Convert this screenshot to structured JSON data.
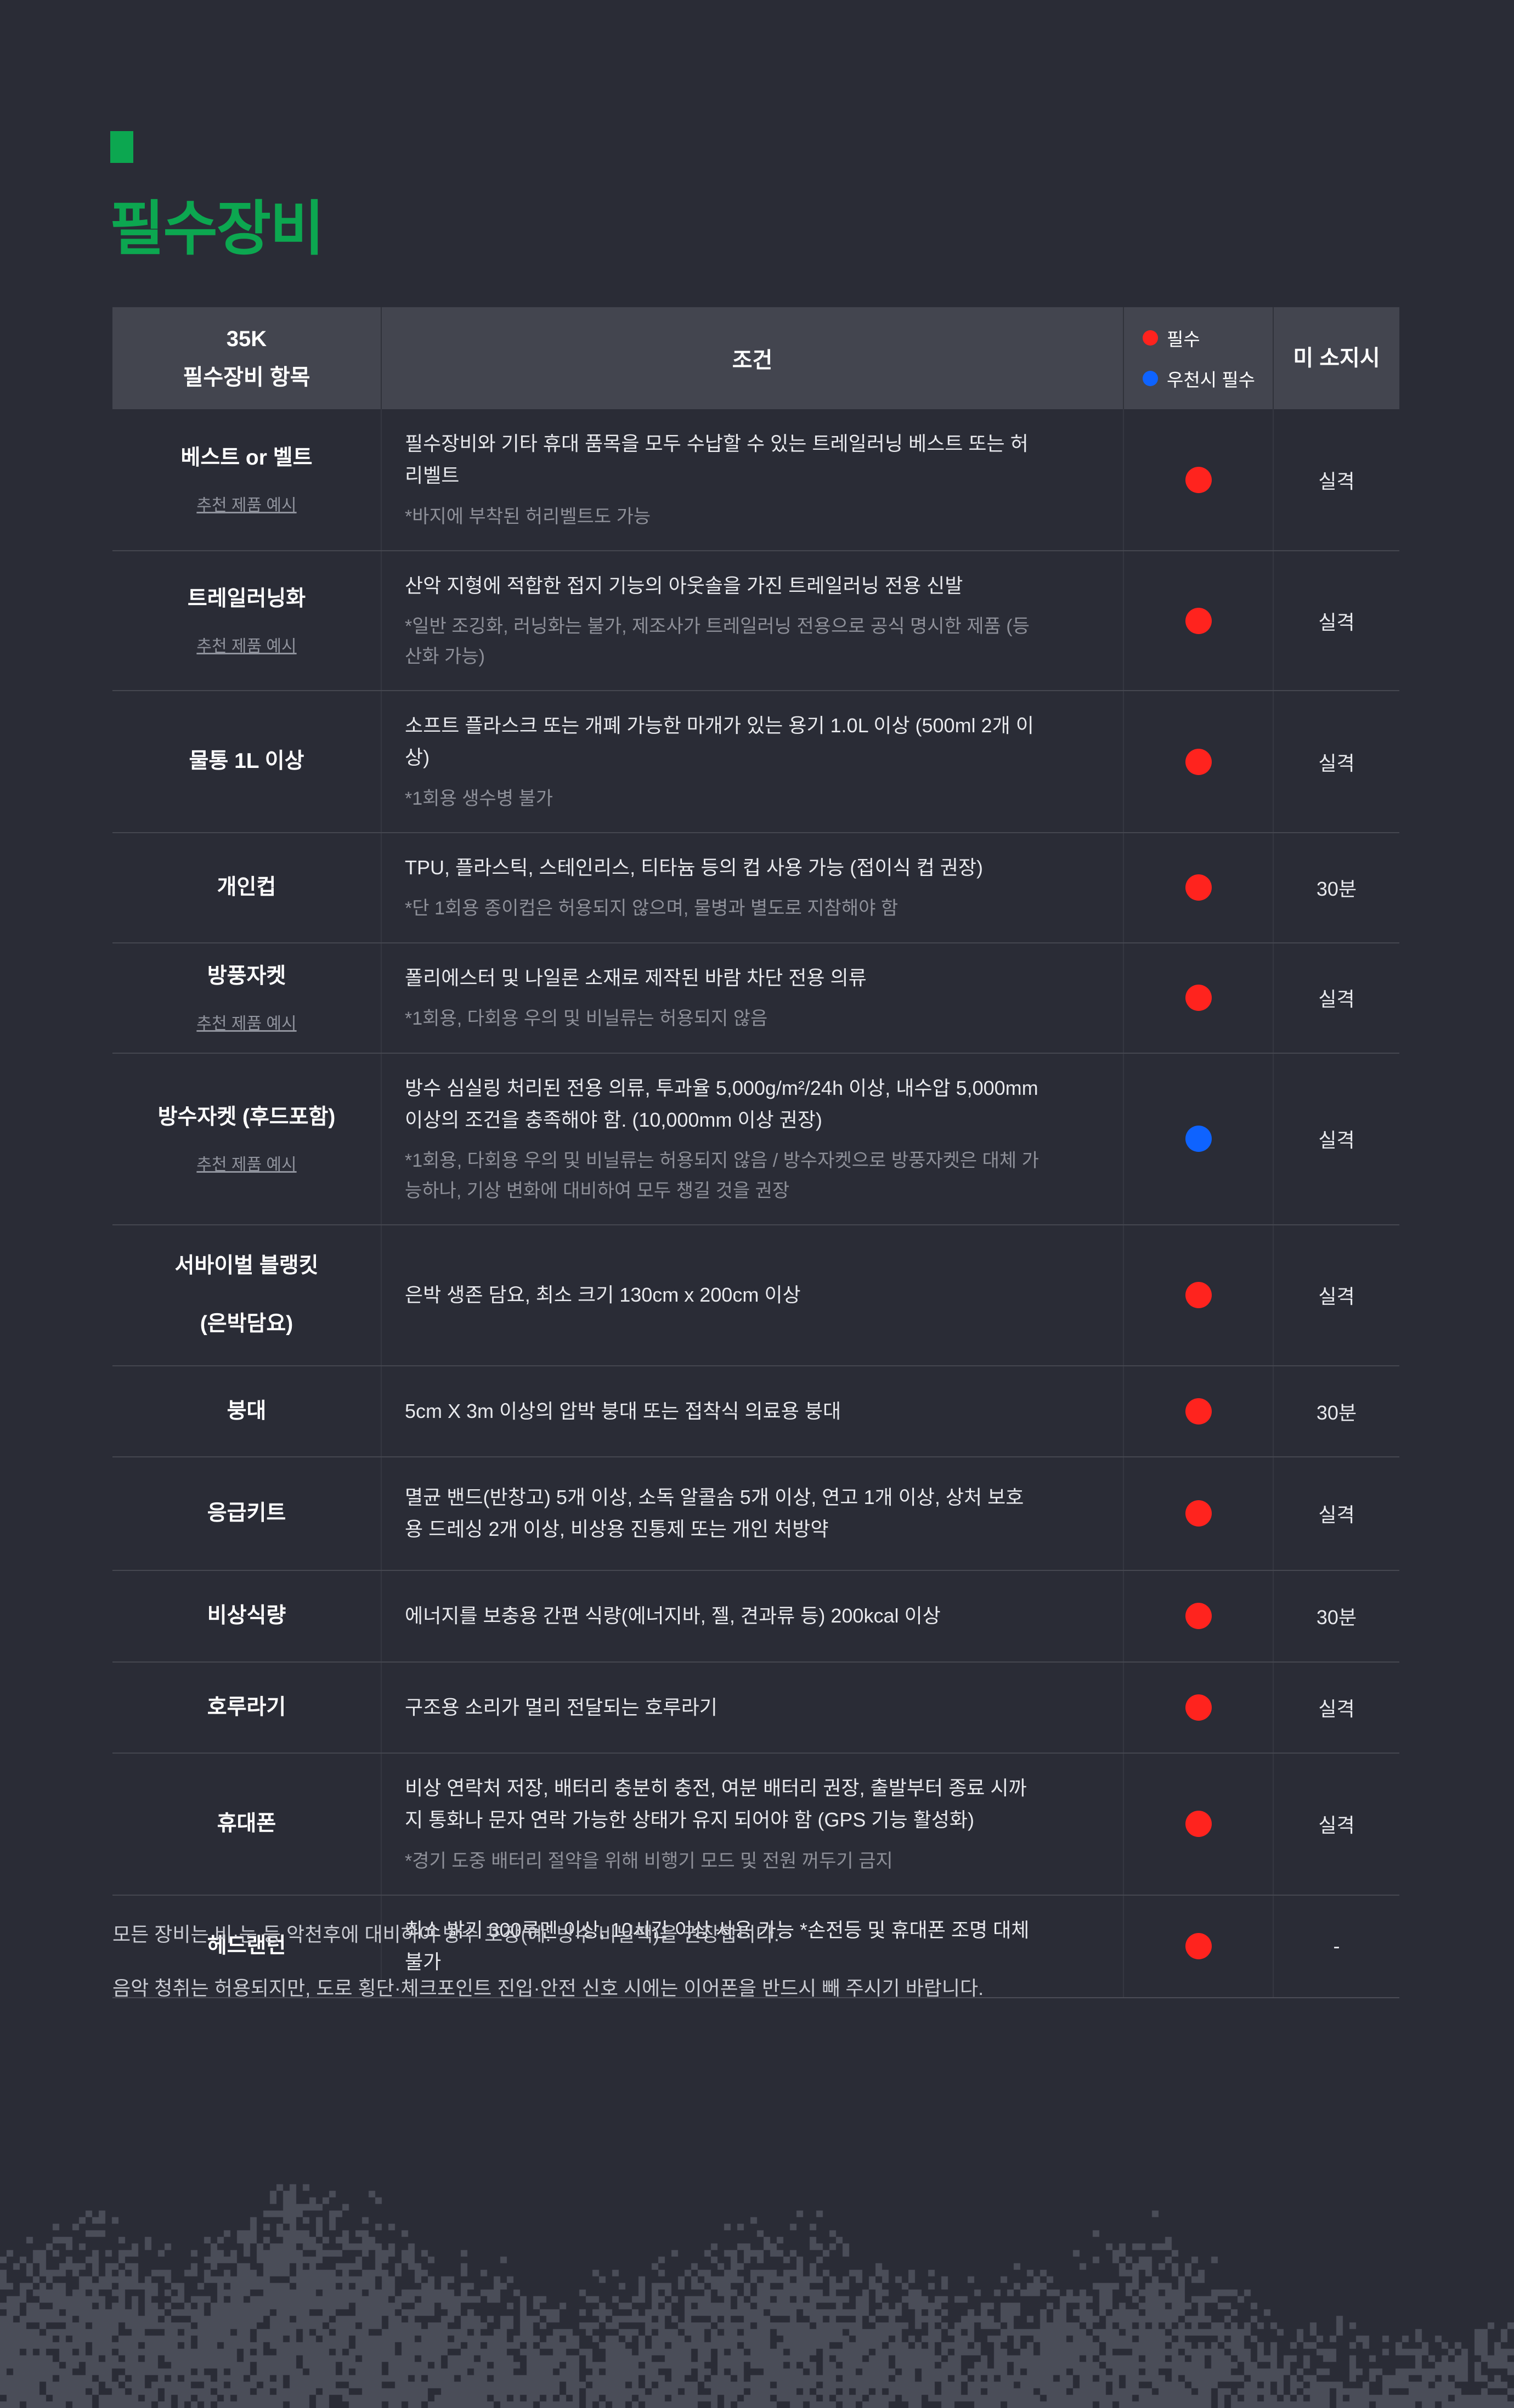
{
  "title": "필수장비",
  "colors": {
    "background": "#2a2c36",
    "header_bg": "#43454f",
    "accent_green": "#0ca750",
    "required_red": "#ff231e",
    "rain_blue": "#0e63ff",
    "mountain_gray": "#4a4d58"
  },
  "table": {
    "header": {
      "item_col_line1": "35K",
      "item_col_line2": "필수장비 항목",
      "condition_col": "조건",
      "legend": [
        {
          "color": "red",
          "label": "필수"
        },
        {
          "color": "blue",
          "label": "우천시 필수"
        }
      ],
      "penalty_col": "미 소지시"
    },
    "link_label": "추천 제품 예시",
    "rows": [
      {
        "item": "베스트 or 벨트",
        "has_link": true,
        "condition": "필수장비와 기타 휴대 품목을 모두 수납할 수 있는 트레일러닝 베스트 또는 허리벨트",
        "note": "*바지에 부착된 허리벨트도 가능",
        "dot": "red",
        "penalty": "실격"
      },
      {
        "item": "트레일러닝화",
        "has_link": true,
        "condition": "산악 지형에 적합한 접지 기능의 아웃솔을 가진 트레일러닝 전용 신발",
        "note": "*일반 조깅화, 러닝화는 불가, 제조사가 트레일러닝 전용으로 공식 명시한 제품 (등산화 가능)",
        "dot": "red",
        "penalty": "실격"
      },
      {
        "item": "물통 1L 이상",
        "has_link": false,
        "condition": "소프트 플라스크 또는 개폐 가능한 마개가 있는 용기 1.0L 이상 (500ml 2개 이상)",
        "note": "*1회용 생수병 불가",
        "dot": "red",
        "penalty": "실격"
      },
      {
        "item": "개인컵",
        "has_link": false,
        "condition": "TPU, 플라스틱, 스테인리스, 티타늄 등의 컵 사용 가능 (접이식 컵 권장)",
        "note": "*단 1회용 종이컵은 허용되지 않으며, 물병과 별도로 지참해야 함",
        "dot": "red",
        "penalty": "30분"
      },
      {
        "item": "방풍자켓",
        "has_link": true,
        "condition": "폴리에스터 및 나일론 소재로 제작된 바람 차단 전용 의류",
        "note": "*1회용, 다회용 우의 및 비닐류는 허용되지 않음",
        "dot": "red",
        "penalty": "실격"
      },
      {
        "item": "방수자켓 (후드포함)",
        "has_link": true,
        "condition": "방수 심실링 처리된 전용 의류, 투과율 5,000g/m²/24h 이상, 내수압 5,000mm 이상의 조건을 충족해야 함. (10,000mm 이상 권장)",
        "note": "*1회용, 다회용 우의 및 비닐류는 허용되지 않음 / 방수자켓으로 방풍자켓은 대체 가능하나, 기상 변화에 대비하여 모두 챙길 것을 권장",
        "dot": "blue",
        "penalty": "실격"
      },
      {
        "item": "서바이벌 블랭킷",
        "item2": "(은박담요)",
        "has_link": false,
        "condition": "은박 생존 담요, 최소 크기 130cm x 200cm 이상",
        "note": "",
        "dot": "red",
        "penalty": "실격"
      },
      {
        "item": "붕대",
        "has_link": false,
        "condition": "5cm X 3m 이상의 압박 붕대 또는 접착식 의료용 붕대",
        "note": "",
        "dot": "red",
        "penalty": "30분"
      },
      {
        "item": "응급키트",
        "has_link": false,
        "condition": "멸균 밴드(반창고) 5개 이상, 소독 알콜솜 5개 이상, 연고 1개 이상, 상처 보호용 드레싱 2개 이상, 비상용 진통제 또는 개인 처방약",
        "note": "",
        "dot": "red",
        "penalty": "실격"
      },
      {
        "item": "비상식량",
        "has_link": false,
        "condition": "에너지를 보충용 간편 식량(에너지바, 젤, 견과류 등) 200kcal 이상",
        "note": "",
        "dot": "red",
        "penalty": "30분"
      },
      {
        "item": "호루라기",
        "has_link": false,
        "condition": "구조용 소리가 멀리 전달되는 호루라기",
        "note": "",
        "dot": "red",
        "penalty": "실격"
      },
      {
        "item": "휴대폰",
        "has_link": false,
        "condition": "비상 연락처 저장, 배터리 충분히 충전, 여분 배터리 권장, 출발부터 종료 시까지 통화나 문자 연락 가능한 상태가 유지 되어야 함 (GPS 기능 활성화)",
        "note": "*경기 도중 배터리 절약을 위해 비행기 모드 및 전원 꺼두기 금지",
        "dot": "red",
        "penalty": "실격"
      },
      {
        "item": "헤드랜턴",
        "has_link": false,
        "condition": "최소 밝기 300루멘 이상, 10시간 이상 사용 가능 *손전등 및 휴대폰 조명 대체 불가",
        "note": "",
        "dot": "red",
        "penalty": "-"
      }
    ]
  },
  "footnotes": [
    "모든 장비는 비·눈 등 악천후에 대비하여 방수 포장(예: 방수 비닐팩)을 권장합니다.",
    "음악 청취는 허용되지만, 도로 횡단·체크포인트 진입·안전 신호 시에는 이어폰을 반드시 빼 주시기 바랍니다."
  ]
}
